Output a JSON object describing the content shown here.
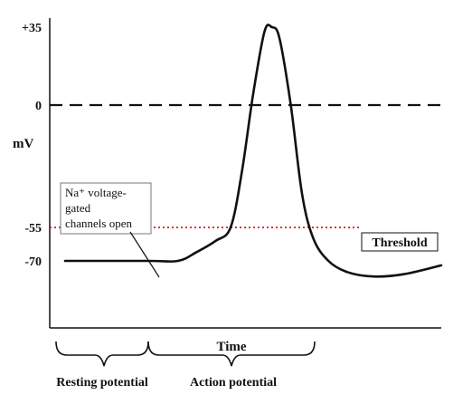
{
  "chart_data": {
    "type": "line",
    "title": "",
    "xlabel": "Time",
    "ylabel": "mV",
    "ylim": [
      -96,
      35
    ],
    "yticks": [
      {
        "value": 35,
        "label": "+35"
      },
      {
        "value": 0,
        "label": "0"
      },
      {
        "value": -55,
        "label": "-55"
      },
      {
        "value": -70,
        "label": "-70"
      }
    ],
    "grid": false,
    "series": [
      {
        "color": "#111111",
        "points": [
          {
            "t": 0.0,
            "mv": -70
          },
          {
            "t": 0.22,
            "mv": -70
          },
          {
            "t": 0.3,
            "mv": -70
          },
          {
            "t": 0.35,
            "mv": -66
          },
          {
            "t": 0.4,
            "mv": -61
          },
          {
            "t": 0.44,
            "mv": -55
          },
          {
            "t": 0.47,
            "mv": -30
          },
          {
            "t": 0.5,
            "mv": 5
          },
          {
            "t": 0.53,
            "mv": 33
          },
          {
            "t": 0.55,
            "mv": 35
          },
          {
            "t": 0.57,
            "mv": 30
          },
          {
            "t": 0.6,
            "mv": 0
          },
          {
            "t": 0.63,
            "mv": -40
          },
          {
            "t": 0.66,
            "mv": -60
          },
          {
            "t": 0.7,
            "mv": -70
          },
          {
            "t": 0.75,
            "mv": -75
          },
          {
            "t": 0.82,
            "mv": -77
          },
          {
            "t": 0.9,
            "mv": -76
          },
          {
            "t": 1.0,
            "mv": -72
          }
        ]
      }
    ],
    "reference_lines": [
      {
        "value": 0,
        "style": "dashed",
        "color": "#111111",
        "label": ""
      },
      {
        "value": -55,
        "style": "dotted",
        "color": "#e0141e",
        "label": "Threshold"
      }
    ],
    "annotations": [
      {
        "lines": [
          "Na⁺ voltage-",
          "gated",
          "channels open"
        ]
      }
    ],
    "phases": [
      {
        "label": "Resting potential"
      },
      {
        "label": "Action potential"
      }
    ]
  }
}
